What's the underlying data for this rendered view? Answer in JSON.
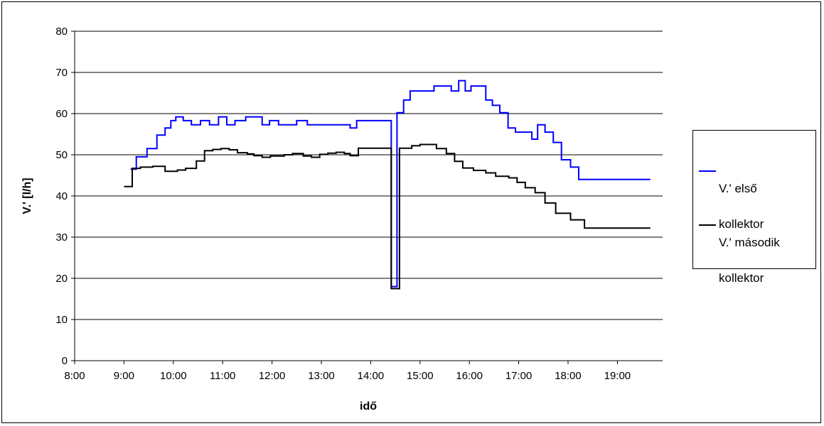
{
  "chart_data": {
    "type": "line",
    "xlabel": "idő",
    "ylabel": "V.' [l/h]",
    "x_ticks": [
      "8:00",
      "9:00",
      "10:00",
      "11:00",
      "12:00",
      "13:00",
      "14:00",
      "15:00",
      "16:00",
      "17:00",
      "18:00",
      "19:00"
    ],
    "xlim": [
      "8:00",
      "19:55"
    ],
    "ylim": [
      0,
      80
    ],
    "y_ticks": [
      0,
      10,
      20,
      30,
      40,
      50,
      60,
      70,
      80
    ],
    "grid": "horizontal",
    "legend_position": "right",
    "series": [
      {
        "name": "V.' első kollektor",
        "legend_lines": [
          "V.' első",
          "kollektor"
        ],
        "color": "#0000ff",
        "step": true,
        "points": [
          [
            "9:08",
            46.5
          ],
          [
            "9:15",
            49.5
          ],
          [
            "9:28",
            51.5
          ],
          [
            "9:40",
            54.8
          ],
          [
            "9:50",
            56.5
          ],
          [
            "9:57",
            58.3
          ],
          [
            "10:03",
            59.2
          ],
          [
            "10:12",
            58.3
          ],
          [
            "10:22",
            57.3
          ],
          [
            "10:33",
            58.3
          ],
          [
            "10:44",
            57.3
          ],
          [
            "10:55",
            59.2
          ],
          [
            "11:05",
            57.3
          ],
          [
            "11:15",
            58.3
          ],
          [
            "11:28",
            59.2
          ],
          [
            "11:48",
            57.3
          ],
          [
            "11:57",
            58.3
          ],
          [
            "12:08",
            57.3
          ],
          [
            "12:30",
            58.3
          ],
          [
            "12:43",
            57.3
          ],
          [
            "13:35",
            56.5
          ],
          [
            "13:43",
            58.3
          ],
          [
            "14:25",
            18.0
          ],
          [
            "14:32",
            60.2
          ],
          [
            "14:40",
            63.3
          ],
          [
            "14:48",
            65.5
          ],
          [
            "15:17",
            66.7
          ],
          [
            "15:38",
            65.5
          ],
          [
            "15:47",
            68.0
          ],
          [
            "15:55",
            65.5
          ],
          [
            "16:02",
            66.7
          ],
          [
            "16:20",
            63.3
          ],
          [
            "16:28",
            62.0
          ],
          [
            "16:37",
            60.2
          ],
          [
            "16:47",
            56.5
          ],
          [
            "16:56",
            55.5
          ],
          [
            "17:16",
            53.8
          ],
          [
            "17:23",
            57.3
          ],
          [
            "17:32",
            55.5
          ],
          [
            "17:42",
            53.0
          ],
          [
            "17:52",
            48.8
          ],
          [
            "18:03",
            47.0
          ],
          [
            "18:13",
            44.0
          ],
          [
            "19:40",
            44.0
          ]
        ]
      },
      {
        "name": "V.' második kollektor",
        "legend_lines": [
          "V.' második",
          "kollektor"
        ],
        "color": "#000000",
        "step": true,
        "points": [
          [
            "9:00",
            42.3
          ],
          [
            "9:10",
            46.7
          ],
          [
            "9:20",
            47.0
          ],
          [
            "9:35",
            47.2
          ],
          [
            "9:50",
            46.0
          ],
          [
            "10:05",
            46.3
          ],
          [
            "10:15",
            46.7
          ],
          [
            "10:28",
            48.5
          ],
          [
            "10:38",
            51.0
          ],
          [
            "10:48",
            51.3
          ],
          [
            "10:58",
            51.5
          ],
          [
            "11:08",
            51.2
          ],
          [
            "11:18",
            50.5
          ],
          [
            "11:30",
            50.2
          ],
          [
            "11:38",
            49.8
          ],
          [
            "11:48",
            49.4
          ],
          [
            "11:58",
            49.7
          ],
          [
            "12:15",
            50.0
          ],
          [
            "12:25",
            50.3
          ],
          [
            "12:38",
            49.7
          ],
          [
            "12:48",
            49.4
          ],
          [
            "12:58",
            50.1
          ],
          [
            "13:08",
            50.4
          ],
          [
            "13:18",
            50.6
          ],
          [
            "13:28",
            50.3
          ],
          [
            "13:35",
            49.8
          ],
          [
            "13:45",
            51.6
          ],
          [
            "14:25",
            17.5
          ],
          [
            "14:35",
            51.6
          ],
          [
            "14:50",
            52.2
          ],
          [
            "15:00",
            52.5
          ],
          [
            "15:12",
            52.5
          ],
          [
            "15:20",
            51.5
          ],
          [
            "15:32",
            50.3
          ],
          [
            "15:42",
            48.4
          ],
          [
            "15:52",
            46.8
          ],
          [
            "16:05",
            46.2
          ],
          [
            "16:20",
            45.6
          ],
          [
            "16:32",
            44.8
          ],
          [
            "16:48",
            44.4
          ],
          [
            "16:58",
            43.3
          ],
          [
            "17:08",
            42.0
          ],
          [
            "17:20",
            40.8
          ],
          [
            "17:32",
            38.3
          ],
          [
            "17:45",
            35.8
          ],
          [
            "18:03",
            34.2
          ],
          [
            "18:20",
            32.2
          ],
          [
            "19:40",
            32.2
          ]
        ]
      }
    ]
  }
}
